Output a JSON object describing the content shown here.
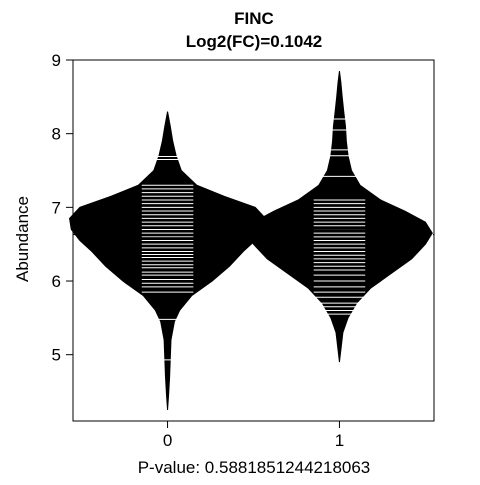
{
  "chart_data": {
    "type": "beanplot",
    "title": "FINC",
    "subtitle": "Log2(FC)=0.1042",
    "xlabel": "P-value: 0.5881851244218063",
    "ylabel": "Abundance",
    "ylim": [
      4.1,
      9.0
    ],
    "xlim": [
      -0.55,
      1.55
    ],
    "y_ticks": [
      "5",
      "6",
      "7",
      "8",
      "9"
    ],
    "x_ticks": [
      "0",
      "1"
    ],
    "overall_mean": 6.63,
    "colors": {
      "fill": "#000000",
      "lines": "#ffffff",
      "axis": "#000000",
      "background": "#ffffff"
    },
    "groups": [
      {
        "name": "0",
        "group_mean": 6.58,
        "density": [
          [
            4.25,
            0.0
          ],
          [
            4.45,
            0.006
          ],
          [
            4.7,
            0.012
          ],
          [
            4.95,
            0.016
          ],
          [
            5.2,
            0.02
          ],
          [
            5.45,
            0.04
          ],
          [
            5.6,
            0.07
          ],
          [
            5.8,
            0.14
          ],
          [
            6.0,
            0.26
          ],
          [
            6.2,
            0.36
          ],
          [
            6.4,
            0.44
          ],
          [
            6.55,
            0.51
          ],
          [
            6.7,
            0.56
          ],
          [
            6.85,
            0.57
          ],
          [
            7.0,
            0.51
          ],
          [
            7.15,
            0.33
          ],
          [
            7.3,
            0.17
          ],
          [
            7.5,
            0.08
          ],
          [
            7.7,
            0.05
          ],
          [
            7.9,
            0.03
          ],
          [
            8.1,
            0.016
          ],
          [
            8.3,
            0.0
          ]
        ],
        "observations": [
          4.93,
          5.48,
          5.85,
          5.92,
          5.97,
          6.02,
          6.08,
          6.12,
          6.18,
          6.22,
          6.27,
          6.32,
          6.36,
          6.4,
          6.45,
          6.5,
          6.55,
          6.6,
          6.65,
          6.7,
          6.75,
          6.8,
          6.85,
          6.9,
          6.95,
          7.0,
          7.05,
          7.1,
          7.15,
          7.2,
          7.25,
          7.3,
          7.65,
          7.69
        ]
      },
      {
        "name": "1",
        "group_mean": 6.69,
        "density": [
          [
            4.9,
            0.0
          ],
          [
            5.1,
            0.01
          ],
          [
            5.3,
            0.02
          ],
          [
            5.5,
            0.05
          ],
          [
            5.7,
            0.1
          ],
          [
            5.9,
            0.18
          ],
          [
            6.1,
            0.3
          ],
          [
            6.3,
            0.42
          ],
          [
            6.5,
            0.5
          ],
          [
            6.65,
            0.54
          ],
          [
            6.8,
            0.5
          ],
          [
            6.95,
            0.38
          ],
          [
            7.1,
            0.24
          ],
          [
            7.3,
            0.12
          ],
          [
            7.5,
            0.07
          ],
          [
            7.7,
            0.05
          ],
          [
            7.9,
            0.04
          ],
          [
            8.1,
            0.035
          ],
          [
            8.3,
            0.025
          ],
          [
            8.5,
            0.016
          ],
          [
            8.7,
            0.008
          ],
          [
            8.85,
            0.0
          ]
        ],
        "observations": [
          5.55,
          5.6,
          5.65,
          5.7,
          5.78,
          5.85,
          5.92,
          6.0,
          6.08,
          6.15,
          6.2,
          6.25,
          6.3,
          6.35,
          6.4,
          6.45,
          6.5,
          6.55,
          6.6,
          6.65,
          6.7,
          6.75,
          6.8,
          6.85,
          6.9,
          6.95,
          7.0,
          7.05,
          7.1,
          7.42,
          7.7,
          7.78,
          8.05,
          8.2
        ]
      }
    ]
  }
}
